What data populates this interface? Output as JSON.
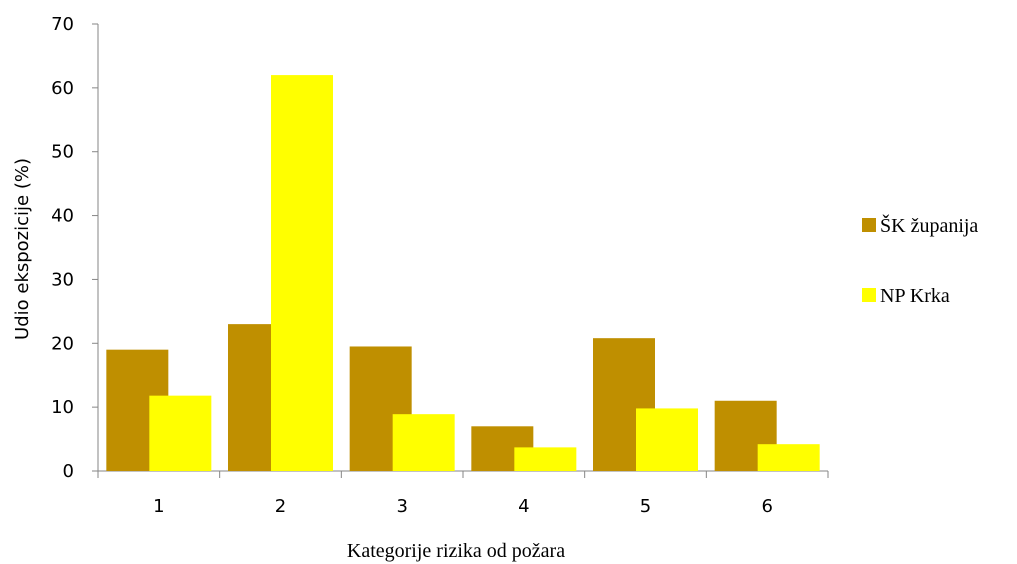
{
  "chart_data": {
    "type": "bar",
    "categories": [
      "1",
      "2",
      "3",
      "4",
      "5",
      "6"
    ],
    "series": [
      {
        "name": "ŠK županija",
        "color": "#BF8F00",
        "values": [
          19,
          23,
          19.5,
          7,
          20.8,
          11
        ]
      },
      {
        "name": "NP Krka",
        "color": "#FFFF00",
        "values": [
          11.8,
          62,
          8.9,
          3.7,
          9.8,
          4.2
        ]
      }
    ],
    "title": "",
    "xlabel": "Kategorije rizika od požara",
    "ylabel": "Udio ekspozicije (%)",
    "ylim": [
      0,
      70
    ],
    "yticks": [
      "0",
      "10",
      "20",
      "30",
      "40",
      "50",
      "60",
      "70"
    ],
    "grid": false,
    "legend_position": "right"
  }
}
